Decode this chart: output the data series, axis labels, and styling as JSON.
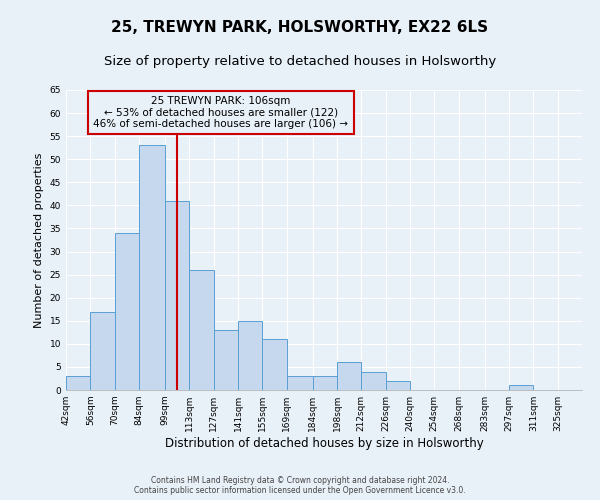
{
  "title": "25, TREWYN PARK, HOLSWORTHY, EX22 6LS",
  "subtitle": "Size of property relative to detached houses in Holsworthy",
  "xlabel": "Distribution of detached houses by size in Holsworthy",
  "ylabel": "Number of detached properties",
  "footer_line1": "Contains HM Land Registry data © Crown copyright and database right 2024.",
  "footer_line2": "Contains public sector information licensed under the Open Government Licence v3.0.",
  "bin_labels": [
    "42sqm",
    "56sqm",
    "70sqm",
    "84sqm",
    "99sqm",
    "113sqm",
    "127sqm",
    "141sqm",
    "155sqm",
    "169sqm",
    "184sqm",
    "198sqm",
    "212sqm",
    "226sqm",
    "240sqm",
    "254sqm",
    "268sqm",
    "283sqm",
    "297sqm",
    "311sqm",
    "325sqm"
  ],
  "bar_heights": [
    3,
    17,
    34,
    53,
    41,
    26,
    13,
    15,
    11,
    3,
    3,
    6,
    4,
    2,
    0,
    0,
    0,
    0,
    1,
    0,
    0
  ],
  "bin_edges": [
    42,
    56,
    70,
    84,
    99,
    113,
    127,
    141,
    155,
    169,
    184,
    198,
    212,
    226,
    240,
    254,
    268,
    283,
    297,
    311,
    325,
    339
  ],
  "bar_color": "#c5d8ed",
  "bar_edge_color": "#5a9fd4",
  "vline_x": 106,
  "vline_color": "#cc0000",
  "annotation_line1": "25 TREWYN PARK: 106sqm",
  "annotation_line2": "← 53% of detached houses are smaller (122)",
  "annotation_line3": "46% of semi-detached houses are larger (106) →",
  "annotation_box_color": "#cc0000",
  "ylim": [
    0,
    65
  ],
  "yticks": [
    0,
    5,
    10,
    15,
    20,
    25,
    30,
    35,
    40,
    45,
    50,
    55,
    60,
    65
  ],
  "bg_color": "#e8f0f8",
  "grid_color": "#ffffff",
  "title_fontsize": 11,
  "subtitle_fontsize": 9.5,
  "xlabel_fontsize": 8.5,
  "ylabel_fontsize": 8,
  "tick_fontsize": 6.5,
  "annotation_fontsize": 7.5,
  "footer_fontsize": 5.5
}
